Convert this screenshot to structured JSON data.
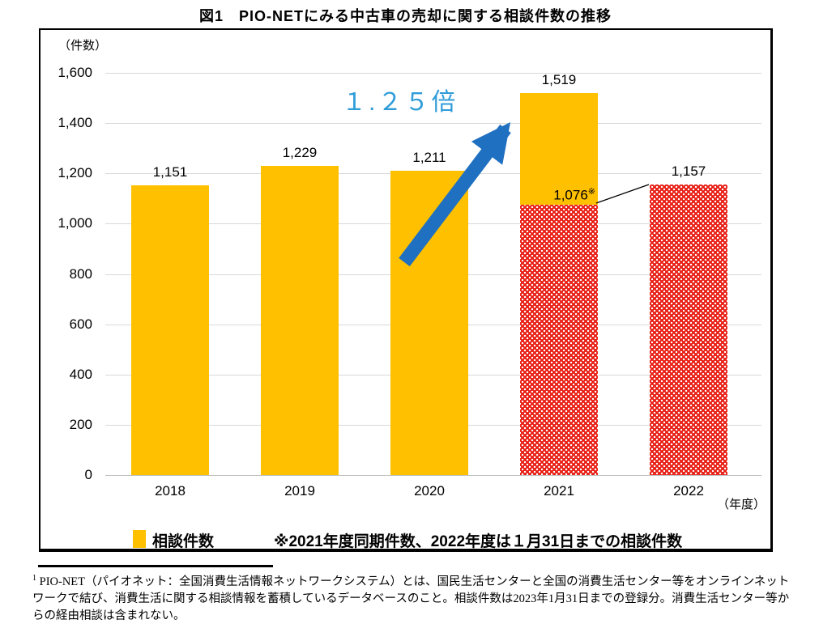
{
  "title": "図1　PIO-NETにみる中古車の売却に関する相談件数の推移",
  "chart_data": {
    "type": "bar",
    "title": "図1　PIO-NETにみる中古車の売却に関する相談件数の推移",
    "y_unit_label": "（件数）",
    "x_unit_label": "（年度）",
    "ylim": [
      0,
      1600
    ],
    "ytick_step": 200,
    "ytick_labels": [
      "0",
      "200",
      "400",
      "600",
      "800",
      "1,000",
      "1,200",
      "1,400",
      "1,600"
    ],
    "grid": true,
    "legend_position": "bottom",
    "categories": [
      "2018",
      "2019",
      "2020",
      "2021",
      "2022"
    ],
    "series": [
      {
        "name": "相談件数",
        "values": [
          1151,
          1229,
          1211,
          1519,
          1157
        ]
      }
    ],
    "value_labels": [
      "1,151",
      "1,229",
      "1,211",
      "1,519",
      "1,157"
    ],
    "bar_styles": [
      "solid",
      "solid",
      "solid",
      "split",
      "pattern"
    ],
    "split_bar": {
      "category": "2021",
      "same_period_value": 1076,
      "label": "1,076",
      "marker": "※"
    },
    "annotations": {
      "multiplier_text": "１.２５倍",
      "arrow": "increase from 2020 bar to 2021 bar"
    },
    "colors": {
      "bar_yellow": "#FFC000",
      "pattern_red": "#E8231A",
      "arrow_blue": "#1F70C1",
      "annotation_blue": "#2F9CD8",
      "gridline": "#D9D9D9"
    }
  },
  "legend": {
    "series_label": "相談件数",
    "note": "※2021年度同期件数、2022年度は１月31日までの相談件数"
  },
  "footnote": {
    "marker": "1",
    "text": "PIO-NET（パイオネット：全国消費生活情報ネットワークシステム）とは、国民生活センターと全国の消費生活センター等をオンラインネットワークで結び、消費生活に関する相談情報を蓄積しているデータベースのこと。相談件数は2023年1月31日までの登録分。消費生活センター等からの経由相談は含まれない。"
  }
}
